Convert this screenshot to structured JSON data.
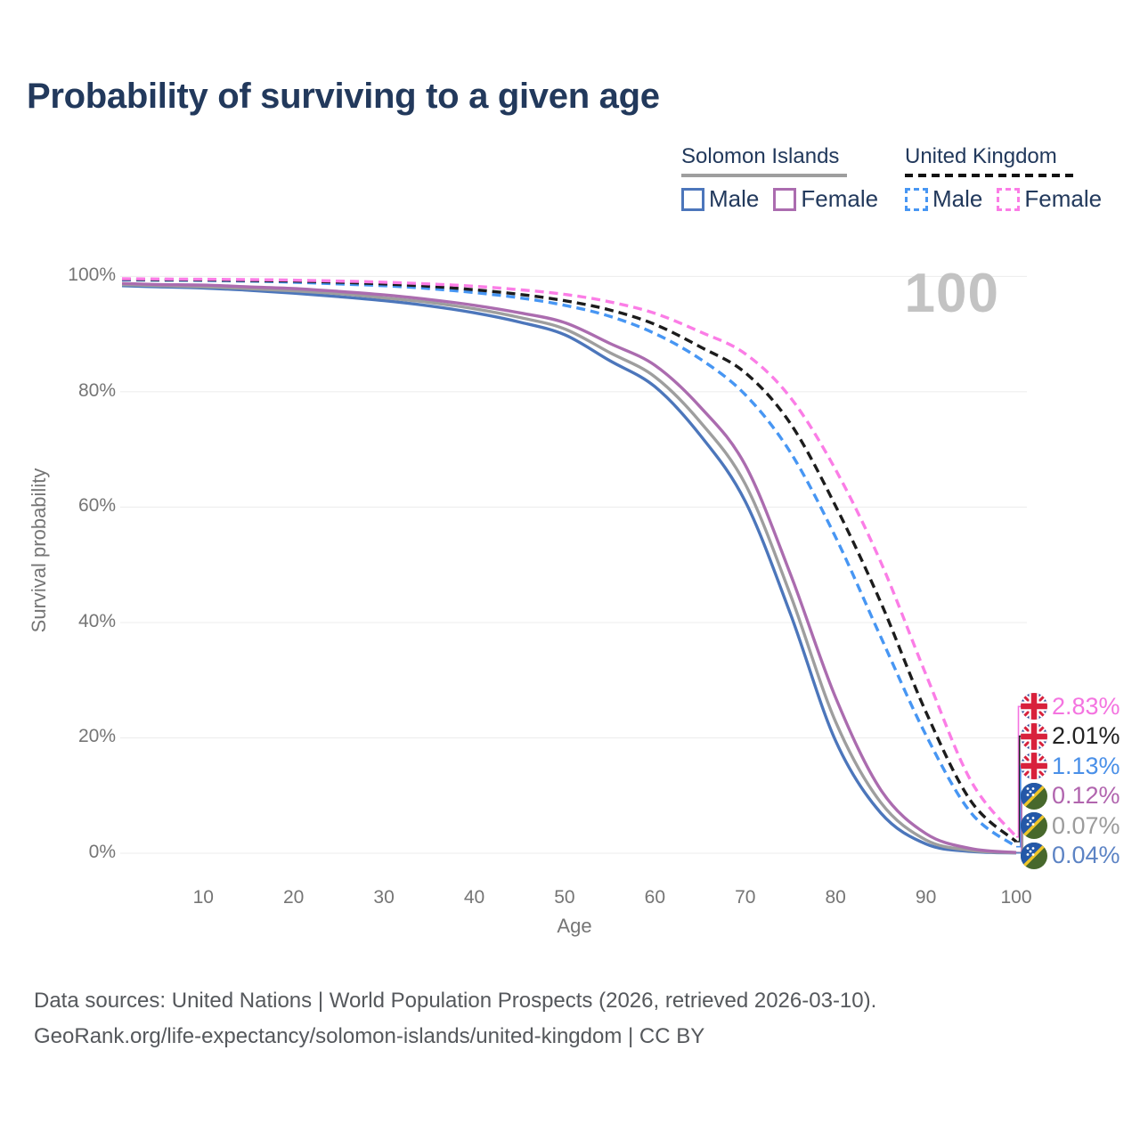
{
  "title": "Probability of surviving to a given age",
  "watermark_age": "100",
  "legend": {
    "groups": [
      {
        "label": "Solomon Islands",
        "style": "solid",
        "rule_color": "#9e9e9e",
        "items": [
          {
            "label": "Male",
            "color": "#4c76bb"
          },
          {
            "label": "Female",
            "color": "#ab6caf"
          }
        ]
      },
      {
        "label": "United Kingdom",
        "style": "dashed",
        "rule_color": "#121212",
        "items": [
          {
            "label": "Male",
            "color": "#4796f3"
          },
          {
            "label": "Female",
            "color": "#fb7de6"
          }
        ]
      }
    ]
  },
  "axes": {
    "y_label": "Survival probability",
    "x_label": "Age",
    "y_ticks": [
      "0%",
      "20%",
      "40%",
      "60%",
      "80%",
      "100%"
    ],
    "x_ticks": [
      "10",
      "20",
      "30",
      "40",
      "50",
      "60",
      "70",
      "80",
      "90",
      "100"
    ]
  },
  "end_labels": [
    {
      "series": "uk_female",
      "value": "2.83%",
      "flag": "united-kingdom",
      "color": "#f474e0"
    },
    {
      "series": "uk_total",
      "value": "2.01%",
      "flag": "united-kingdom",
      "color": "#222222"
    },
    {
      "series": "uk_male",
      "value": "1.13%",
      "flag": "united-kingdom",
      "color": "#4a90e8"
    },
    {
      "series": "si_female",
      "value": "0.12%",
      "flag": "solomon-islands",
      "color": "#b165ae"
    },
    {
      "series": "si_total",
      "value": "0.07%",
      "flag": "solomon-islands",
      "color": "#9c9c9c"
    },
    {
      "series": "si_male",
      "value": "0.04%",
      "flag": "solomon-islands",
      "color": "#5c83c4"
    }
  ],
  "footer": {
    "line1": "Data sources: United Nations | World Population Prospects (2026, retrieved 2026-03-10).",
    "line2": "GeoRank.org/life-expectancy/solomon-islands/united-kingdom | CC BY"
  },
  "chart_data": {
    "type": "line",
    "title": "Probability of surviving to a given age",
    "xlabel": "Age",
    "ylabel": "Survival probability",
    "xlim": [
      1,
      100
    ],
    "ylim": [
      0,
      100
    ],
    "y_unit": "%",
    "grid": true,
    "legend_position": "top-right",
    "x": [
      1,
      5,
      10,
      15,
      20,
      25,
      30,
      35,
      40,
      45,
      50,
      55,
      60,
      65,
      70,
      75,
      80,
      85,
      90,
      95,
      100
    ],
    "series": [
      {
        "name": "si_male",
        "label": "Solomon Islands Male",
        "color": "#4c76bb",
        "dash": false,
        "values": [
          98.4,
          98.2,
          98.0,
          97.6,
          97.1,
          96.5,
          95.8,
          94.9,
          93.7,
          92.1,
          89.9,
          85.4,
          80.9,
          72.5,
          61.0,
          41.5,
          19.5,
          7.0,
          1.6,
          0.3,
          0.04
        ]
      },
      {
        "name": "si_total",
        "label": "Solomon Islands (both sexes)",
        "color": "#9e9e9e",
        "dash": false,
        "values": [
          98.6,
          98.4,
          98.2,
          97.9,
          97.5,
          97.0,
          96.3,
          95.5,
          94.4,
          92.9,
          90.9,
          86.8,
          82.6,
          74.8,
          64.0,
          44.8,
          22.8,
          8.8,
          2.3,
          0.5,
          0.07
        ]
      },
      {
        "name": "si_female",
        "label": "Solomon Islands Female",
        "color": "#ab6caf",
        "dash": false,
        "values": [
          98.8,
          98.6,
          98.5,
          98.2,
          97.9,
          97.4,
          96.8,
          96.0,
          95.0,
          93.7,
          92.0,
          88.4,
          84.6,
          77.4,
          67.3,
          48.4,
          27.0,
          11.0,
          3.4,
          0.8,
          0.12
        ]
      },
      {
        "name": "uk_male",
        "label": "United Kingdom Male",
        "color": "#4796f3",
        "dash": true,
        "values": [
          99.4,
          99.35,
          99.3,
          99.2,
          99.0,
          98.7,
          98.4,
          97.9,
          97.2,
          96.3,
          95.0,
          93.1,
          90.1,
          85.7,
          79.5,
          69.5,
          54.8,
          37.5,
          20.5,
          7.0,
          1.13
        ]
      },
      {
        "name": "uk_total",
        "label": "United Kingdom (both sexes)",
        "color": "#1c1c1c",
        "dash": true,
        "values": [
          99.5,
          99.45,
          99.4,
          99.3,
          99.2,
          99.0,
          98.7,
          98.3,
          97.7,
          96.9,
          95.8,
          94.2,
          91.7,
          87.8,
          83.3,
          74.5,
          60.2,
          43.5,
          24.5,
          9.0,
          2.01
        ]
      },
      {
        "name": "uk_female",
        "label": "United Kingdom Female",
        "color": "#fb7de6",
        "dash": true,
        "values": [
          99.6,
          99.55,
          99.5,
          99.45,
          99.35,
          99.2,
          99.0,
          98.7,
          98.3,
          97.7,
          96.9,
          95.6,
          93.6,
          90.4,
          86.6,
          79.0,
          66.5,
          50.5,
          31.0,
          12.5,
          2.83
        ]
      }
    ]
  }
}
